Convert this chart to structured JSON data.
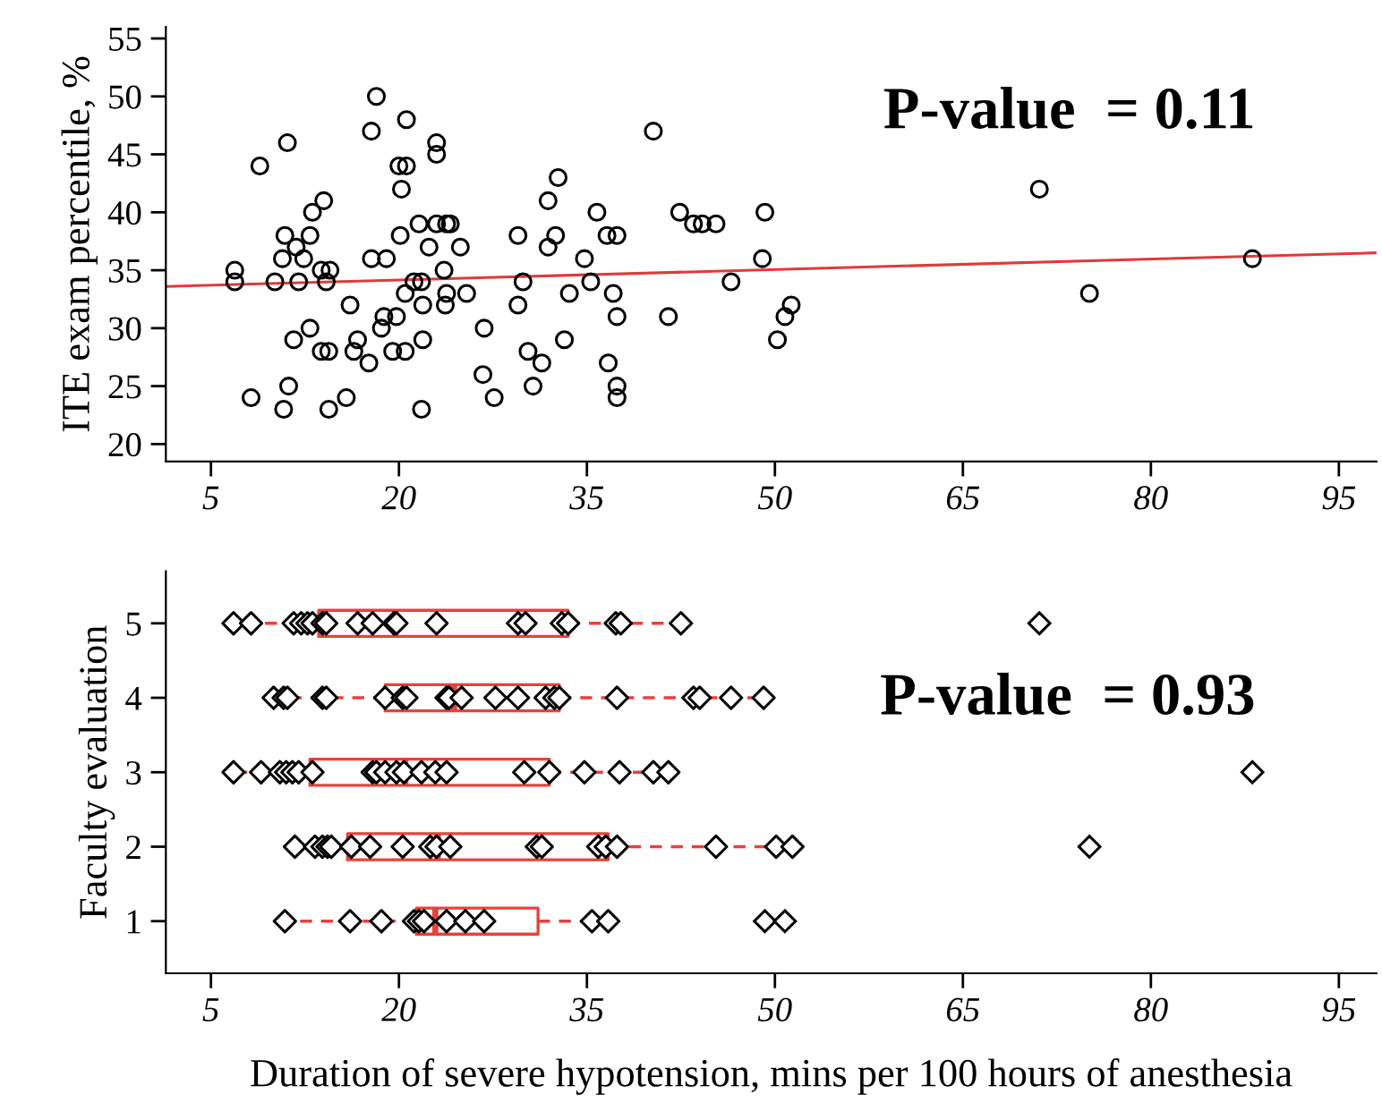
{
  "chart_data": [
    {
      "type": "scatter",
      "ylabel": "ITE exam percentile, %",
      "annotations": [
        "P-value  = 0.11"
      ],
      "xlim": [
        1.4,
        98
      ],
      "xticks": [
        5,
        20,
        35,
        50,
        65,
        80,
        95
      ],
      "ylim": [
        18.5,
        56
      ],
      "yticks": [
        20,
        25,
        30,
        35,
        40,
        45,
        50,
        55
      ],
      "grid": false,
      "series": [
        {
          "type": "scatter",
          "marker": "circle",
          "color": "#000000",
          "x": [
            6.9,
            6.9,
            8.9,
            8.2,
            10.1,
            10.8,
            11.1,
            11.2,
            11.6,
            10.7,
            10.9,
            11.8,
            12.0,
            12.4,
            12.9,
            12.9,
            13.1,
            14.0,
            13.8,
            14.5,
            14.2,
            13.8,
            14.4,
            14.4,
            15.8,
            16.1,
            16.7,
            16.4,
            17.6,
            17.8,
            17.8,
            18.2,
            19.0,
            18.6,
            18.8,
            19.5,
            19.8,
            20.5,
            20.5,
            20.1,
            20.2,
            20.0,
            20.6,
            20.6,
            21.2,
            21.8,
            21.6,
            21.9,
            21.9,
            21.8,
            22.4,
            23.0,
            23.0,
            23.0,
            23.8,
            24.1,
            23.6,
            23.8,
            23.7,
            24.9,
            25.4,
            26.8,
            26.7,
            27.6,
            29.5,
            29.5,
            29.9,
            30.3,
            30.7,
            31.4,
            31.9,
            31.9,
            32.5,
            32.7,
            33.2,
            33.6,
            34.8,
            35.3,
            35.8,
            36.6,
            37.4,
            37.1,
            37.4,
            36.7,
            37.4,
            37.4,
            40.3,
            42.4,
            43.5,
            44.2,
            45.3,
            46.5,
            41.5,
            49.2,
            49.0,
            51.3,
            50.8,
            50.2,
            71.1,
            75.1,
            88.1
          ],
          "values": [
            35,
            34,
            44,
            24,
            34,
            23,
            46,
            25,
            29,
            36,
            38,
            37,
            34,
            36,
            38,
            30,
            40,
            41,
            35,
            35,
            34,
            28,
            28,
            23,
            24,
            32,
            29,
            28,
            27,
            36,
            47,
            50,
            36,
            30,
            31,
            28,
            31,
            28,
            33,
            38,
            42,
            44,
            44,
            48,
            34,
            34,
            39,
            32,
            29,
            23,
            37,
            46,
            45,
            39,
            39,
            39,
            35,
            33,
            32,
            37,
            33,
            30,
            26,
            24,
            38,
            32,
            34,
            28,
            25,
            27,
            41,
            37,
            38,
            43,
            29,
            33,
            36,
            34,
            40,
            38,
            38,
            33,
            31,
            27,
            25,
            24,
            47,
            40,
            39,
            39,
            39,
            34,
            31,
            40,
            36,
            32,
            31,
            29,
            42,
            33,
            36
          ]
        },
        {
          "type": "line",
          "color": "#e03a3a",
          "x": [
            1.4,
            98
          ],
          "values": [
            33.6,
            36.5
          ]
        }
      ]
    },
    {
      "type": "box",
      "orientation": "horizontal",
      "ylabel": "Faculty evaluation",
      "xlabel": "Duration of severe hypotension, mins per 100 hours of anesthesia",
      "annotations": [
        "P-value  = 0.93"
      ],
      "xlim": [
        1.4,
        98
      ],
      "xticks": [
        5,
        20,
        35,
        50,
        65,
        80,
        95
      ],
      "grid": false,
      "marker": "diamond",
      "color": "#e8413c",
      "categories": [
        "5",
        "4",
        "3",
        "2",
        "1"
      ],
      "boxes": [
        {
          "low": 6.8,
          "q1": 13.6,
          "median": 19.7,
          "q3": 33.5,
          "high": 42.5,
          "outliers": [
            71.1
          ]
        },
        {
          "low": 10.0,
          "q1": 18.9,
          "median": 24.4,
          "q3": 32.8,
          "high": 49.1
        },
        {
          "low": 6.8,
          "q1": 12.9,
          "median": 20.5,
          "q3": 32.0,
          "high": 41.5,
          "outliers": [
            88.1
          ]
        },
        {
          "low": 11.7,
          "q1": 15.9,
          "median": 23.1,
          "q3": 36.7,
          "high": 51.4,
          "outliers": [
            75.1
          ]
        },
        {
          "low": 10.9,
          "q1": 21.4,
          "median": 22.9,
          "q3": 31.1,
          "high": 36.7,
          "outliers": [
            49.2,
            50.8
          ]
        }
      ],
      "series": [
        {
          "type": "scatter",
          "color": "#000000",
          "x": [
            "5",
            "5",
            "5",
            "5",
            "5",
            "5",
            "5",
            "5",
            "5",
            "5",
            "5",
            "5",
            "5",
            "5",
            "5",
            "5",
            "5",
            "5",
            "5",
            "5",
            "4",
            "4",
            "4",
            "4",
            "4",
            "4",
            "4",
            "4",
            "4",
            "4",
            "4",
            "4",
            "4",
            "4",
            "4",
            "4",
            "4",
            "4",
            "4",
            "4",
            "4",
            "3",
            "3",
            "3",
            "3",
            "3",
            "3",
            "3",
            "3",
            "3",
            "3",
            "3",
            "3",
            "3",
            "3",
            "3",
            "3",
            "3",
            "3",
            "3",
            "3",
            "3",
            "2",
            "2",
            "2",
            "2",
            "2",
            "2",
            "2",
            "2",
            "2",
            "2",
            "2",
            "2",
            "2",
            "2",
            "2",
            "2",
            "2",
            "2",
            "2",
            "1",
            "1",
            "1",
            "1",
            "1",
            "1",
            "1",
            "1",
            "1",
            "1",
            "1"
          ],
          "values": [
            6.8,
            8.2,
            11.6,
            12.2,
            12.7,
            13.1,
            13.9,
            14.2,
            16.7,
            17.9,
            19.6,
            19.8,
            23.0,
            29.5,
            30.1,
            33.0,
            33.5,
            37.3,
            37.7,
            42.5,
            10.0,
            10.8,
            11.1,
            13.9,
            14.2,
            18.9,
            20.3,
            20.6,
            23.8,
            24.0,
            25.0,
            27.7,
            29.5,
            31.7,
            32.4,
            32.8,
            37.4,
            43.5,
            44.0,
            46.5,
            49.1,
            6.8,
            9.0,
            10.5,
            11.0,
            11.5,
            12.0,
            13.1,
            17.9,
            18.2,
            18.9,
            19.8,
            20.4,
            21.8,
            22.9,
            23.8,
            30.0,
            32.0,
            34.8,
            37.6,
            40.3,
            41.5,
            11.7,
            13.3,
            13.9,
            14.3,
            14.6,
            16.2,
            17.7,
            20.3,
            22.5,
            23.0,
            24.1,
            31.0,
            31.4,
            35.9,
            36.5,
            37.4,
            45.3,
            50.1,
            51.4,
            10.9,
            16.1,
            18.6,
            21.2,
            21.6,
            22.0,
            23.8,
            25.3,
            26.8,
            35.4,
            36.7
          ]
        }
      ]
    }
  ]
}
